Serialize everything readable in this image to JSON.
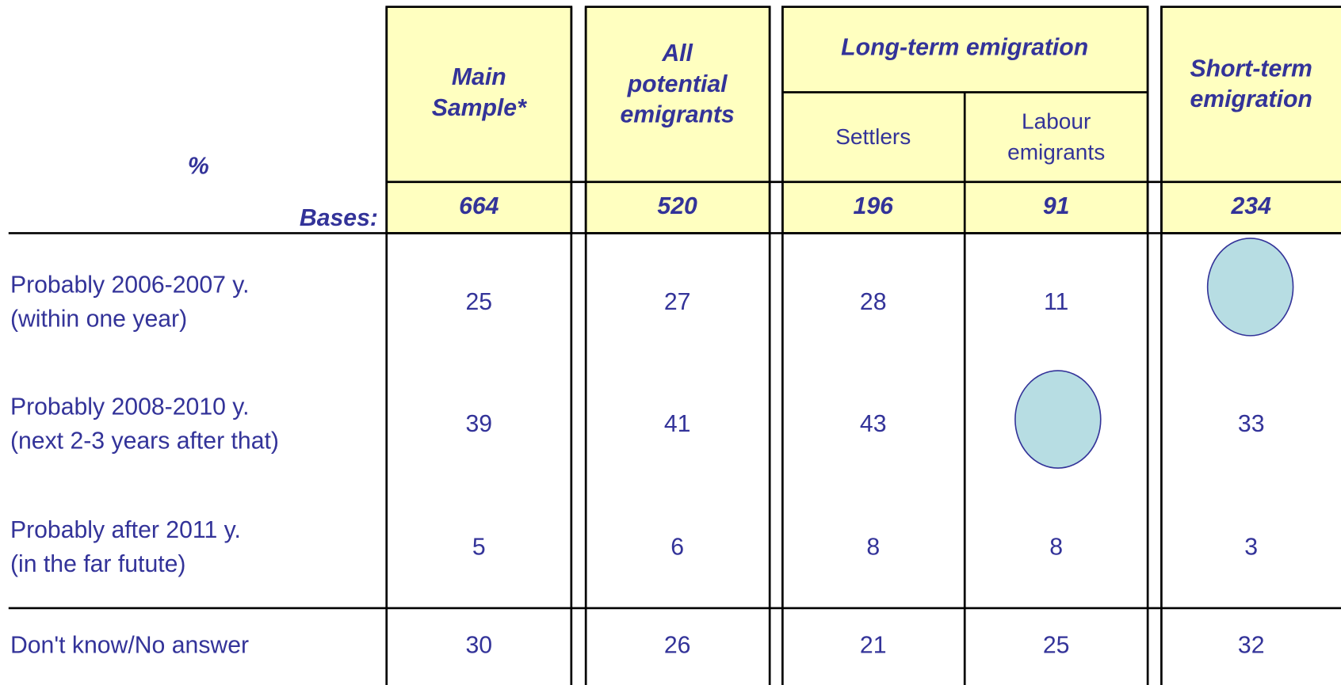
{
  "table": {
    "corner": "%",
    "bases_label": "Bases:",
    "group": "Long-term emigration",
    "columns": [
      {
        "label": [
          "Main",
          "Sample*"
        ],
        "base": 664
      },
      {
        "label": [
          "All",
          "potential",
          "emigrants"
        ],
        "base": 520
      },
      {
        "label": [
          "Settlers"
        ],
        "base": 196
      },
      {
        "label": [
          "Labour",
          "emigrants"
        ],
        "base": 91
      },
      {
        "label": [
          "Short-term",
          "emigration"
        ],
        "base": 234
      }
    ],
    "rows": [
      {
        "label": [
          "Probably 2006-2007 y.",
          "(within one year)"
        ],
        "values": [
          25,
          27,
          28,
          11,
          null
        ]
      },
      {
        "label": [
          "Probably 2008-2010 y.",
          "(next 2-3 years after that)"
        ],
        "values": [
          39,
          41,
          43,
          null,
          33
        ]
      },
      {
        "label": [
          "Probably after 2011 y.",
          "(in the far futute)"
        ],
        "values": [
          5,
          6,
          8,
          8,
          3
        ]
      },
      {
        "label": [
          "Don't know/No answer"
        ],
        "values": [
          30,
          26,
          21,
          25,
          32
        ]
      }
    ]
  }
}
